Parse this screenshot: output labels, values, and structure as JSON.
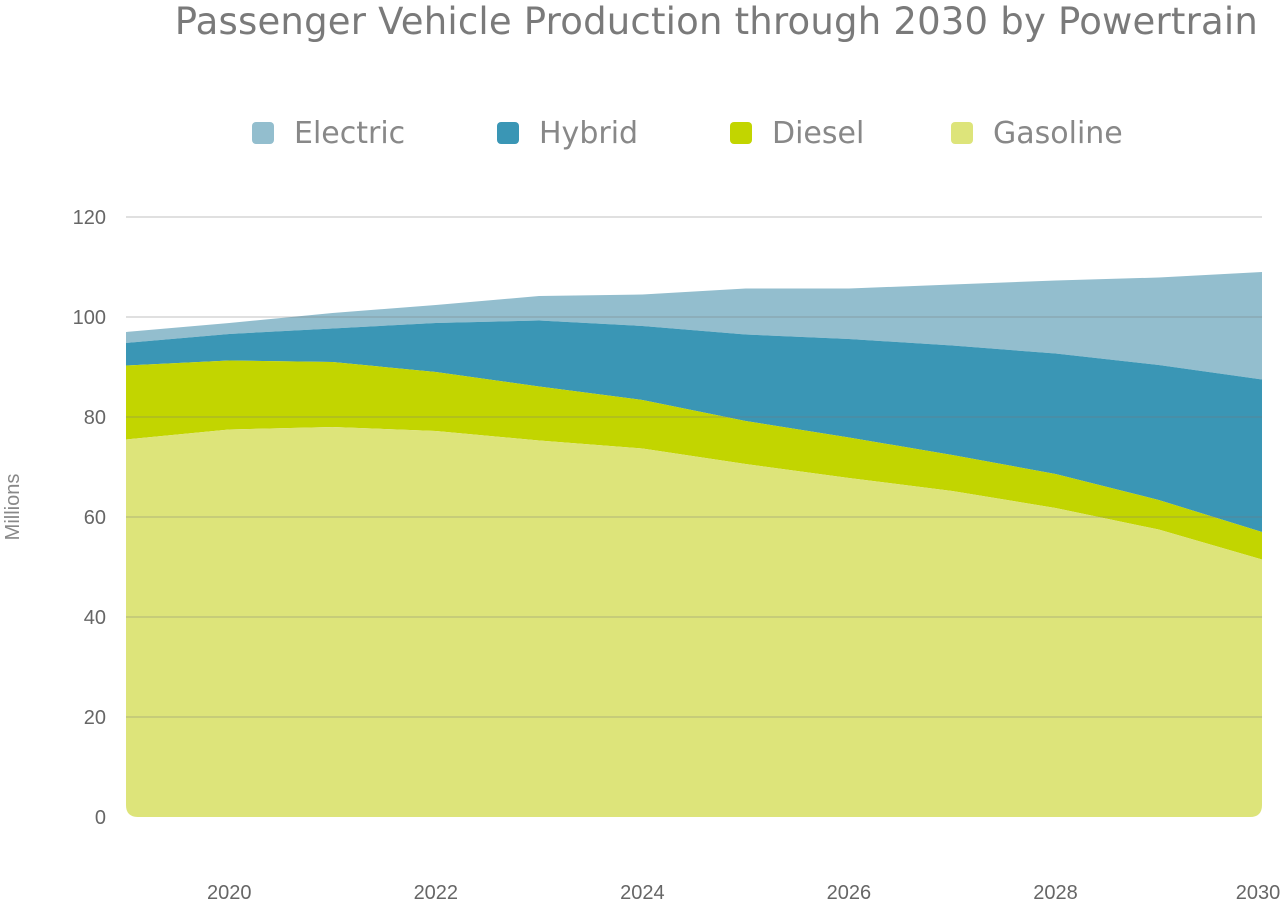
{
  "chart_data": {
    "type": "area",
    "stacked": true,
    "title": "Passenger Vehicle Production through 2030 by Powertrain",
    "xlabel": "",
    "ylabel": "Millions",
    "x": [
      2019,
      2020,
      2021,
      2022,
      2023,
      2024,
      2025,
      2026,
      2027,
      2028,
      2029,
      2030
    ],
    "x_ticks": [
      "2020",
      "2022",
      "2024",
      "2026",
      "2028",
      "2030"
    ],
    "y_ticks": [
      "0",
      "20",
      "40",
      "60",
      "80",
      "100",
      "120"
    ],
    "ylim": [
      0,
      120
    ],
    "grid": true,
    "legend_position": "top",
    "series": [
      {
        "name": "Gasoline",
        "color": "#dde47a",
        "values": [
          75.5,
          77.5,
          78,
          77.2,
          75.3,
          73.7,
          70.6,
          67.8,
          65.2,
          61.8,
          57.5,
          51.5
        ]
      },
      {
        "name": "Diesel",
        "color": "#c2d500",
        "values": [
          14.8,
          13.8,
          13,
          11.8,
          10.8,
          9.7,
          8.6,
          8.1,
          7.2,
          6.8,
          5.9,
          5.5
        ]
      },
      {
        "name": "Hybrid",
        "color": "#3a96b5",
        "values": [
          4.5,
          5.3,
          6.7,
          9.8,
          13.2,
          14.8,
          17.3,
          19.7,
          21.9,
          24.1,
          27,
          30.5
        ]
      },
      {
        "name": "Electric",
        "color": "#93bece",
        "values": [
          2.2,
          2.2,
          3.1,
          3.6,
          4.9,
          6.3,
          9.2,
          10.1,
          12.2,
          14.6,
          17.5,
          21.5
        ]
      }
    ]
  },
  "legend": [
    {
      "label": "Electric",
      "color": "#93bece"
    },
    {
      "label": "Hybrid",
      "color": "#3a96b5"
    },
    {
      "label": "Diesel",
      "color": "#c2d500"
    },
    {
      "label": "Gasoline",
      "color": "#dde47a"
    }
  ]
}
